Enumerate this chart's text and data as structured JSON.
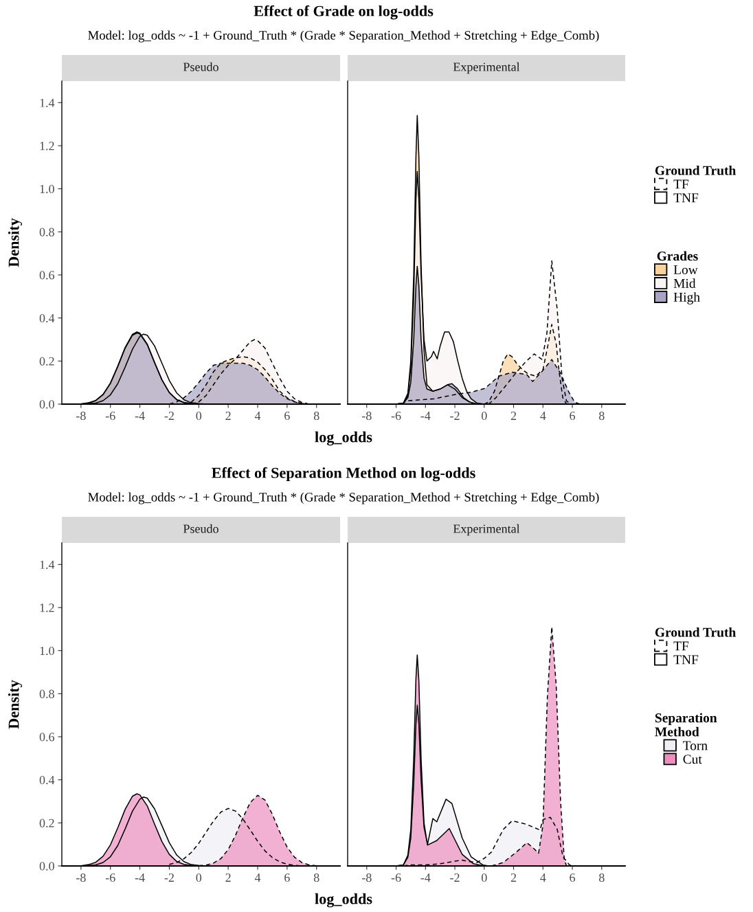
{
  "chart_data": [
    {
      "type": "area",
      "title": "Pseudo",
      "annotations": [
        "Effect of Grade on log-odds",
        "Model: log_odds ~ -1 + Ground_Truth * (Grade * Separation_Method + Stretching + Edge_Comb)"
      ],
      "xlabel": "log_odds",
      "ylabel": "Density",
      "xlim": [
        -9.3,
        9.6
      ],
      "ylim": [
        0,
        1.5
      ],
      "xticks": [
        -8,
        -6,
        -4,
        -2,
        0,
        2,
        4,
        6,
        8
      ],
      "yticks": [
        {
          "value": 0,
          "label": "0.0"
        },
        {
          "value": 0.2,
          "label": "0.2"
        },
        {
          "value": 0.4,
          "label": "0.4"
        },
        {
          "value": 0.6,
          "label": "0.6"
        },
        {
          "value": 0.8,
          "label": "0.8"
        },
        {
          "value": 1.0,
          "label": "1.0"
        },
        {
          "value": 1.2,
          "label": "1.2"
        },
        {
          "value": 1.4,
          "label": "1.4"
        }
      ],
      "series": [
        {
          "color": "#f9d29d",
          "line_style": "dashed",
          "x": [
            -1,
            -0.5,
            0,
            0.5,
            1,
            1.5,
            2,
            2.5,
            3,
            3.5,
            4,
            4.5,
            5,
            5.5,
            6,
            6.5,
            7,
            7.5
          ],
          "values": [
            0,
            0.01,
            0.04,
            0.09,
            0.15,
            0.19,
            0.205,
            0.215,
            0.22,
            0.215,
            0.195,
            0.16,
            0.115,
            0.06,
            0.03,
            0.012,
            0.004,
            0
          ]
        },
        {
          "color": "#fbf4f4",
          "line_style": "dashed",
          "x": [
            -0.5,
            0,
            0.5,
            1,
            1.5,
            2,
            2.5,
            3,
            3.5,
            3.8,
            4,
            4.5,
            5,
            5.5,
            6,
            6.5,
            7,
            7.5
          ],
          "values": [
            0,
            0.01,
            0.04,
            0.09,
            0.14,
            0.18,
            0.21,
            0.25,
            0.29,
            0.3,
            0.295,
            0.26,
            0.19,
            0.12,
            0.06,
            0.025,
            0.008,
            0
          ]
        },
        {
          "color": "#a8a5c4",
          "line_style": "dashed",
          "x": [
            -2,
            -1.5,
            -1,
            -0.5,
            0,
            0.5,
            1,
            1.5,
            2,
            2.5,
            3,
            3.5,
            4,
            4.5,
            5,
            5.5,
            6,
            6.5,
            7,
            7.5
          ],
          "values": [
            0,
            0.01,
            0.03,
            0.06,
            0.1,
            0.145,
            0.18,
            0.19,
            0.19,
            0.19,
            0.19,
            0.18,
            0.16,
            0.125,
            0.085,
            0.05,
            0.025,
            0.01,
            0.003,
            0
          ]
        },
        {
          "color": "#f9d29d",
          "line_style": "solid",
          "x": [
            -8,
            -7.5,
            -7,
            -6.5,
            -6,
            -5.5,
            -5,
            -4.5,
            -4.2,
            -4,
            -3.5,
            -3,
            -2.5,
            -2,
            -1.5,
            -1,
            -0.5,
            0
          ],
          "values": [
            0.001,
            0.006,
            0.017,
            0.045,
            0.098,
            0.177,
            0.263,
            0.324,
            0.335,
            0.33,
            0.279,
            0.194,
            0.113,
            0.054,
            0.021,
            0.007,
            0.002,
            0
          ]
        },
        {
          "color": "#fbf4f4",
          "line_style": "solid",
          "x": [
            -7.5,
            -7,
            -6.5,
            -6,
            -5.5,
            -5,
            -4.5,
            -4,
            -3.75,
            -3.5,
            -3,
            -2.5,
            -2,
            -1.5,
            -1,
            -0.5,
            0,
            0.5
          ],
          "values": [
            0.002,
            0.005,
            0.016,
            0.043,
            0.095,
            0.172,
            0.255,
            0.315,
            0.325,
            0.32,
            0.27,
            0.19,
            0.11,
            0.052,
            0.02,
            0.006,
            0.002,
            0
          ]
        },
        {
          "color": "#a8a5c4",
          "line_style": "solid",
          "x": [
            -8,
            -7.5,
            -7,
            -6.5,
            -6,
            -5.5,
            -5,
            -4.5,
            -4.2,
            -4,
            -3.5,
            -3,
            -2.5,
            -2,
            -1.5,
            -1,
            -0.5,
            0
          ],
          "values": [
            0.001,
            0.005,
            0.016,
            0.044,
            0.096,
            0.174,
            0.26,
            0.32,
            0.33,
            0.326,
            0.276,
            0.192,
            0.112,
            0.054,
            0.021,
            0.007,
            0.002,
            0
          ]
        }
      ]
    },
    {
      "type": "area",
      "title": "Experimental",
      "legend": "right",
      "legend_title": "Grades",
      "annotations": [
        "Ground Truth",
        "TF",
        "TNF"
      ],
      "tick_labels": "x",
      "xlim": [
        -9.3,
        9.6
      ],
      "ylim": [
        0,
        1.5
      ],
      "xticks": [
        -8,
        -6,
        -4,
        -2,
        0,
        2,
        4,
        6,
        8
      ],
      "series": [
        {
          "name": "Low",
          "color": "#f9d29d",
          "line_style": "dashed",
          "x": [
            0,
            0.3,
            0.7,
            1,
            1.3,
            1.6,
            1.9,
            2.2,
            2.6,
            3,
            3.5,
            4,
            4.3,
            4.6,
            4.9,
            5.1,
            5.35,
            5.6
          ],
          "values": [
            0,
            0.01,
            0.06,
            0.13,
            0.2,
            0.233,
            0.22,
            0.19,
            0.16,
            0.14,
            0.13,
            0.16,
            0.26,
            0.37,
            0.28,
            0.15,
            0.03,
            0
          ]
        },
        {
          "name": "Mid",
          "color": "#fbf4f4",
          "line_style": "dashed",
          "x": [
            0.3,
            0.8,
            1.4,
            2.1,
            2.8,
            3.4,
            3.95,
            4.27,
            4.6,
            4.97,
            5.3,
            5.6,
            5.9
          ],
          "values": [
            0,
            0.03,
            0.08,
            0.14,
            0.195,
            0.233,
            0.207,
            0.33,
            0.665,
            0.44,
            0.12,
            0.015,
            0
          ]
        },
        {
          "name": "High",
          "color": "#a8a5c4",
          "line_style": "dashed",
          "x": [
            -5.6,
            -5.3,
            -3.4,
            -1.8,
            -0.9,
            0.05,
            1,
            1.9,
            2.9,
            3.3,
            3.95,
            4.6,
            5.2,
            5.75,
            6.15,
            6.5
          ],
          "values": [
            0,
            0.015,
            0.025,
            0.047,
            0.055,
            0.073,
            0.13,
            0.148,
            0.137,
            0.105,
            0.153,
            0.207,
            0.143,
            0.057,
            0.01,
            0
          ]
        },
        {
          "color": "#f9d29d",
          "line_style": "solid",
          "x": [
            -6,
            -5.5,
            -5.2,
            -5,
            -4.8,
            -4.65,
            -4.56,
            -4.45,
            -4.3,
            -4.1,
            -3.9,
            -3.5,
            -3,
            -2.5,
            -2,
            -1.5,
            -1,
            -0.5
          ],
          "values": [
            0,
            0.005,
            0.05,
            0.2,
            0.6,
            1.15,
            1.34,
            1.15,
            0.65,
            0.25,
            0.09,
            0.06,
            0.07,
            0.09,
            0.07,
            0.03,
            0.01,
            0
          ]
        },
        {
          "color": "#fbf4f4",
          "line_style": "solid",
          "x": [
            -6,
            -5.5,
            -5.2,
            -5,
            -4.8,
            -4.65,
            -4.56,
            -4.45,
            -4.3,
            -4.1,
            -3.9,
            -3.6,
            -3.45,
            -3.2,
            -3,
            -2.7,
            -2.4,
            -2.1,
            -1.8,
            -1.5,
            -1.2,
            -0.9,
            -0.5,
            0
          ],
          "values": [
            0,
            0.005,
            0.04,
            0.17,
            0.5,
            0.95,
            1.08,
            0.95,
            0.6,
            0.3,
            0.2,
            0.22,
            0.245,
            0.21,
            0.27,
            0.335,
            0.335,
            0.29,
            0.2,
            0.12,
            0.06,
            0.025,
            0.005,
            0
          ]
        },
        {
          "color": "#a8a5c4",
          "line_style": "solid",
          "x": [
            -6,
            -5.5,
            -5.2,
            -5,
            -4.8,
            -4.65,
            -4.56,
            -4.45,
            -4.3,
            -4.1,
            -3.9,
            -3.5,
            -3,
            -2.5,
            -2.2,
            -1.8,
            -1.4,
            -1,
            -0.5
          ],
          "values": [
            0,
            0.005,
            0.03,
            0.1,
            0.3,
            0.55,
            0.64,
            0.55,
            0.3,
            0.12,
            0.07,
            0.06,
            0.07,
            0.09,
            0.095,
            0.07,
            0.03,
            0.01,
            0
          ]
        }
      ]
    },
    {
      "type": "area",
      "title": "Pseudo",
      "annotations": [
        "Effect of Separation Method on log-odds",
        "Model: log_odds ~ -1 + Ground_Truth * (Grade * Separation_Method + Stretching + Edge_Comb)"
      ],
      "xlabel": "log_odds",
      "ylabel": "Density",
      "xlim": [
        -9.3,
        9.6
      ],
      "ylim": [
        0,
        1.5
      ],
      "xticks": [
        -8,
        -6,
        -4,
        -2,
        0,
        2,
        4,
        6,
        8
      ],
      "yticks": [
        {
          "value": 0,
          "label": "0.0"
        },
        {
          "value": 0.2,
          "label": "0.2"
        },
        {
          "value": 0.4,
          "label": "0.4"
        },
        {
          "value": 0.6,
          "label": "0.6"
        },
        {
          "value": 0.8,
          "label": "0.8"
        },
        {
          "value": 1.0,
          "label": "1.0"
        },
        {
          "value": 1.2,
          "label": "1.2"
        },
        {
          "value": 1.4,
          "label": "1.4"
        }
      ],
      "series": [
        {
          "color": "#efeef5",
          "line_style": "dashed",
          "x": [
            -2,
            -1.5,
            -1,
            -0.5,
            0,
            0.5,
            1,
            1.5,
            2,
            2.5,
            3,
            3.5,
            4,
            4.5,
            5,
            5.5,
            6,
            6.5,
            7
          ],
          "values": [
            0.007,
            0.016,
            0.034,
            0.063,
            0.105,
            0.157,
            0.209,
            0.25,
            0.267,
            0.255,
            0.218,
            0.167,
            0.115,
            0.07,
            0.039,
            0.019,
            0.008,
            0.003,
            0
          ]
        },
        {
          "color": "#ec8fbf",
          "line_style": "dashed",
          "x": [
            0,
            0.5,
            1,
            1.5,
            2,
            2.5,
            3,
            3.5,
            4,
            4.5,
            5,
            5.5,
            6,
            6.5,
            7,
            7.5,
            8
          ],
          "values": [
            0.001,
            0.004,
            0.013,
            0.034,
            0.076,
            0.143,
            0.224,
            0.295,
            0.328,
            0.306,
            0.24,
            0.158,
            0.088,
            0.041,
            0.016,
            0.005,
            0.001
          ]
        },
        {
          "color": "#efeef5",
          "line_style": "solid",
          "x": [
            -7.5,
            -7,
            -6.5,
            -6,
            -5.5,
            -5,
            -4.5,
            -4,
            -3.75,
            -3.5,
            -3,
            -2.5,
            -2,
            -1.5,
            -1,
            -0.5,
            0,
            0.5
          ],
          "values": [
            0.002,
            0.005,
            0.016,
            0.043,
            0.095,
            0.172,
            0.255,
            0.31,
            0.32,
            0.315,
            0.265,
            0.187,
            0.108,
            0.051,
            0.02,
            0.006,
            0.002,
            0
          ]
        },
        {
          "color": "#ec8fbf",
          "line_style": "solid",
          "x": [
            -8,
            -7.5,
            -7,
            -6.5,
            -6,
            -5.5,
            -5,
            -4.5,
            -4.2,
            -4,
            -3.5,
            -3,
            -2.5,
            -2,
            -1.5,
            -1,
            -0.5,
            0
          ],
          "values": [
            0.001,
            0.006,
            0.017,
            0.045,
            0.098,
            0.177,
            0.263,
            0.324,
            0.335,
            0.33,
            0.279,
            0.194,
            0.113,
            0.054,
            0.021,
            0.007,
            0.002,
            0
          ]
        }
      ]
    },
    {
      "type": "area",
      "title": "Experimental",
      "legend": "right",
      "legend_title": "Separation\nMethod",
      "annotations": [
        "Ground Truth",
        "TF",
        "TNF"
      ],
      "tick_labels": "x",
      "xlim": [
        -9.3,
        9.6
      ],
      "ylim": [
        0,
        1.5
      ],
      "xticks": [
        -8,
        -6,
        -4,
        -2,
        0,
        2,
        4,
        6,
        8
      ],
      "series": [
        {
          "name": "Torn",
          "color": "#efeef5",
          "line_style": "dashed",
          "x": [
            -5.5,
            -5,
            -4,
            -3,
            -2,
            -1.5,
            -1,
            -0.5,
            0,
            0.5,
            1.3,
            1.9,
            2.85,
            3.8,
            4.0,
            4.5,
            4.97,
            5.36,
            5.8,
            6
          ],
          "values": [
            0,
            0.005,
            0.005,
            0.01,
            0.022,
            0.027,
            0.02,
            0.016,
            0.035,
            0.065,
            0.17,
            0.21,
            0.194,
            0.167,
            0.215,
            0.226,
            0.17,
            0.043,
            0.005,
            0
          ]
        },
        {
          "name": "Cut",
          "color": "#ec8fbf",
          "line_style": "dashed",
          "x": [
            0.5,
            1.3,
            2.2,
            2.9,
            3.3,
            3.7,
            4.0,
            4.3,
            4.6,
            4.9,
            5.2,
            5.45,
            5.6
          ],
          "values": [
            0,
            0.016,
            0.065,
            0.108,
            0.086,
            0.059,
            0.19,
            0.785,
            1.11,
            0.84,
            0.3,
            0.032,
            0
          ]
        },
        {
          "color": "#efeef5",
          "line_style": "solid",
          "x": [
            -6,
            -5.5,
            -5.2,
            -5,
            -4.8,
            -4.65,
            -4.56,
            -4.45,
            -4.3,
            -4.1,
            -3.86,
            -3.5,
            -3.23,
            -2.6,
            -2.2,
            -1.5,
            -0.9,
            -0.1,
            0.3
          ],
          "values": [
            0,
            0.005,
            0.04,
            0.13,
            0.38,
            0.66,
            0.747,
            0.66,
            0.4,
            0.18,
            0.1,
            0.22,
            0.205,
            0.31,
            0.29,
            0.13,
            0.043,
            0.005,
            0
          ]
        },
        {
          "color": "#ec8fbf",
          "line_style": "solid",
          "x": [
            -6,
            -5.5,
            -5.2,
            -5,
            -4.8,
            -4.65,
            -4.56,
            -4.45,
            -4.3,
            -4.1,
            -3.86,
            -3.23,
            -2.38,
            -1.5,
            -0.73,
            0
          ],
          "values": [
            0,
            0.005,
            0.05,
            0.17,
            0.5,
            0.87,
            0.98,
            0.86,
            0.5,
            0.2,
            0.097,
            0.118,
            0.174,
            0.054,
            0.01,
            0
          ]
        }
      ]
    }
  ]
}
